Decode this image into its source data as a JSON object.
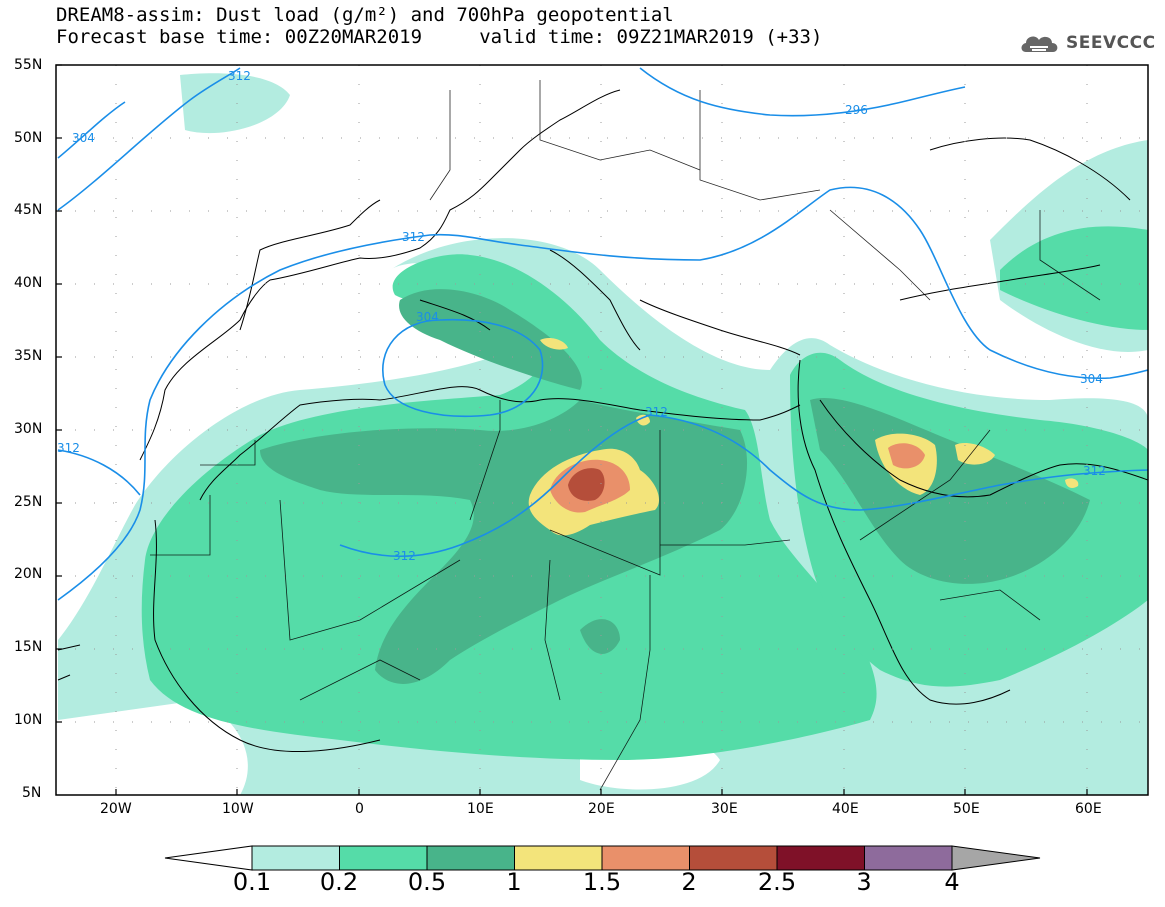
{
  "header": {
    "title_line1": "DREAM8-assim: Dust load (g/m²) and 700hPa geopotential",
    "title_line2": "Forecast base time: 00Z20MAR2019     valid time: 09Z21MAR2019 (+33)",
    "logo_text": "SEEVCCC"
  },
  "map": {
    "lon_range": [
      -25,
      65
    ],
    "lat_range": [
      5,
      55
    ],
    "y_ticks": [
      "55N",
      "50N",
      "45N",
      "40N",
      "35N",
      "30N",
      "25N",
      "20N",
      "15N",
      "10N",
      "5N"
    ],
    "x_ticks": [
      "20W",
      "10W",
      "0",
      "10E",
      "20E",
      "30E",
      "40E",
      "50E",
      "60E"
    ],
    "contour_labels": [
      "312",
      "304",
      "296",
      "312",
      "304",
      "312",
      "312",
      "312",
      "304",
      "312"
    ]
  },
  "colorbar": {
    "labels": [
      "0.1",
      "0.2",
      "0.5",
      "1",
      "1.5",
      "2",
      "2.5",
      "3",
      "4"
    ],
    "colors": [
      "#ffffff",
      "#b3ece0",
      "#55dca8",
      "#48b48a",
      "#f3e47b",
      "#e9906a",
      "#b54e3a",
      "#7f1128",
      "#8e6b9c",
      "#a6a6a6"
    ]
  },
  "palette": {
    "d1": "#b3ece0",
    "d2": "#55dca8",
    "d3": "#48b48a",
    "d4": "#f3e47b",
    "d5": "#e9906a",
    "d6": "#b54e3a",
    "contour": "#1a8ee8"
  }
}
